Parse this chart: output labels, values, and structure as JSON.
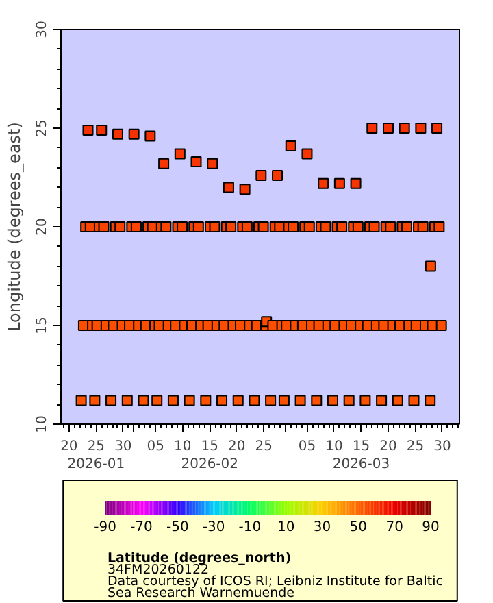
{
  "chart_data": {
    "type": "scatter",
    "ylabel": "Longitude (degrees_east)",
    "clabel": "Latitude (degrees_north)",
    "annotations": [
      "34FM20260122",
      "Data courtesy of ICOS RI; Leibniz Institute for Baltic Sea Research Warnemuende"
    ],
    "xlim": [
      "2026-01-18T12:00",
      "2026-04-02T04:00"
    ],
    "xticks": [
      {
        "value": "2026-01-20",
        "label": "20"
      },
      {
        "value": "2026-01-25",
        "label": "25\n2026-01"
      },
      {
        "value": "2026-01-30",
        "label": "30"
      },
      {
        "value": "2026-02-01",
        "label": null
      },
      {
        "value": "2026-02-05",
        "label": "05"
      },
      {
        "value": "2026-02-10",
        "label": "10"
      },
      {
        "value": "2026-02-15",
        "label": "15\n2026-02"
      },
      {
        "value": "2026-02-20",
        "label": "20"
      },
      {
        "value": "2026-02-25",
        "label": "25"
      },
      {
        "value": "2026-03-01",
        "label": null
      },
      {
        "value": "2026-03-05",
        "label": "05"
      },
      {
        "value": "2026-03-10",
        "label": "10"
      },
      {
        "value": "2026-03-15",
        "label": "15\n2026-03"
      },
      {
        "value": "2026-03-20",
        "label": "20"
      },
      {
        "value": "2026-03-25",
        "label": "25"
      },
      {
        "value": "2026-03-30",
        "label": "30"
      }
    ],
    "ylim": [
      10,
      30
    ],
    "yticks": [
      10,
      15,
      20,
      25,
      30
    ],
    "clim": [
      -90,
      90
    ],
    "cticks": [
      -90,
      -70,
      -50,
      -30,
      -10,
      10,
      30,
      50,
      70,
      90
    ],
    "marker": "square",
    "grid": false,
    "series": [
      {
        "x": [
          "2026-01-22T06:00",
          "2026-01-22T16:00",
          "2026-01-23T02:00",
          "2026-01-23T12:00",
          "2026-01-23T22:00",
          "2026-01-24T08:00",
          "2026-01-24T18:00",
          "2026-01-25T04:00",
          "2026-01-25T14:00",
          "2026-01-26T00:00",
          "2026-01-26T10:00",
          "2026-01-26T20:00",
          "2026-01-27T18:00",
          "2026-01-28T04:00",
          "2026-01-28T14:00",
          "2026-01-29T00:00",
          "2026-01-29T10:00",
          "2026-01-29T20:00",
          "2026-01-30T18:00",
          "2026-01-31T04:00",
          "2026-01-31T14:00",
          "2026-02-01T00:00",
          "2026-02-01T10:00",
          "2026-02-01T20:00",
          "2026-02-02T18:00",
          "2026-02-03T04:00",
          "2026-02-03T14:00",
          "2026-02-04T00:00",
          "2026-02-04T10:00",
          "2026-02-04T20:00",
          "2026-02-05T06:00",
          "2026-02-05T16:00",
          "2026-02-06T02:00",
          "2026-02-06T12:00",
          "2026-02-06T22:00",
          "2026-02-07T08:00",
          "2026-02-08T06:00",
          "2026-02-08T16:00",
          "2026-02-09T02:00",
          "2026-02-09T12:00",
          "2026-02-09T22:00",
          "2026-02-10T08:00",
          "2026-02-11T06:00",
          "2026-02-11T16:00",
          "2026-02-12T02:00",
          "2026-02-12T12:00",
          "2026-02-12T22:00",
          "2026-02-13T08:00",
          "2026-02-14T06:00",
          "2026-02-14T16:00",
          "2026-02-15T02:00",
          "2026-02-15T12:00",
          "2026-02-15T22:00",
          "2026-02-16T08:00",
          "2026-02-17T06:00",
          "2026-02-17T16:00",
          "2026-02-18T02:00",
          "2026-02-18T12:00",
          "2026-02-18T22:00",
          "2026-02-19T08:00",
          "2026-02-20T06:00",
          "2026-02-20T16:00",
          "2026-02-21T02:00",
          "2026-02-21T12:00",
          "2026-02-21T22:00",
          "2026-02-22T08:00",
          "2026-02-23T06:00",
          "2026-02-23T16:00",
          "2026-02-24T02:00",
          "2026-02-24T12:00",
          "2026-02-24T22:00",
          "2026-02-25T08:00",
          "2026-02-25T12:00",
          "2026-02-26T06:00",
          "2026-02-26T16:00",
          "2026-02-27T02:00",
          "2026-02-27T12:00",
          "2026-02-27T22:00",
          "2026-02-28T08:00",
          "2026-02-28T18:00",
          "2026-03-01T04:00",
          "2026-03-01T14:00",
          "2026-03-02T00:00",
          "2026-03-02T10:00",
          "2026-03-02T20:00",
          "2026-03-03T18:00",
          "2026-03-04T04:00",
          "2026-03-04T14:00",
          "2026-03-05T00:00",
          "2026-03-05T10:00",
          "2026-03-05T20:00",
          "2026-03-06T18:00",
          "2026-03-07T04:00",
          "2026-03-07T14:00",
          "2026-03-08T00:00",
          "2026-03-08T10:00",
          "2026-03-08T20:00",
          "2026-03-09T18:00",
          "2026-03-10T04:00",
          "2026-03-10T14:00",
          "2026-03-11T00:00",
          "2026-03-11T10:00",
          "2026-03-11T20:00",
          "2026-03-12T18:00",
          "2026-03-13T04:00",
          "2026-03-13T14:00",
          "2026-03-14T00:00",
          "2026-03-14T10:00",
          "2026-03-14T20:00",
          "2026-03-15T18:00",
          "2026-03-16T04:00",
          "2026-03-16T14:00",
          "2026-03-17T00:00",
          "2026-03-17T10:00",
          "2026-03-17T20:00",
          "2026-03-18T18:00",
          "2026-03-19T04:00",
          "2026-03-19T14:00",
          "2026-03-20T00:00",
          "2026-03-20T10:00",
          "2026-03-20T20:00",
          "2026-03-21T18:00",
          "2026-03-22T04:00",
          "2026-03-22T14:00",
          "2026-03-23T00:00",
          "2026-03-23T10:00",
          "2026-03-23T20:00",
          "2026-03-24T18:00",
          "2026-03-25T04:00",
          "2026-03-25T14:00",
          "2026-03-26T00:00",
          "2026-03-26T10:00",
          "2026-03-26T20:00",
          "2026-03-27T18:00",
          "2026-03-27T20:00",
          "2026-03-28T04:00",
          "2026-03-28T14:00",
          "2026-03-29T00:00",
          "2026-03-29T10:00",
          "2026-03-29T20:00"
        ],
        "values": [
          11.2,
          15,
          20,
          24.9,
          20,
          15,
          11.2,
          15,
          20,
          24.9,
          20,
          15,
          11.2,
          15,
          20,
          24.7,
          20,
          15,
          11.2,
          15,
          20,
          24.7,
          20,
          15,
          11.2,
          15,
          20,
          24.6,
          20,
          15,
          11.2,
          15,
          20,
          23.2,
          20,
          15,
          11.2,
          15,
          20,
          23.7,
          20,
          15,
          11.2,
          15,
          20,
          23.3,
          20,
          15,
          11.2,
          15,
          20,
          23.2,
          20,
          15,
          11.2,
          15,
          20,
          22.0,
          20,
          15,
          11.2,
          15,
          20,
          21.9,
          20,
          15,
          11.2,
          15,
          20,
          22.6,
          20,
          15,
          15.2,
          11.2,
          15,
          20,
          22.6,
          20,
          15,
          11.2,
          15,
          20,
          24.1,
          20,
          15,
          11.2,
          15,
          20,
          23.7,
          20,
          15,
          11.2,
          15,
          20,
          22.2,
          20,
          15,
          11.2,
          15,
          20,
          22.2,
          20,
          15,
          11.2,
          15,
          20,
          22.2,
          20,
          15,
          11.2,
          15,
          20,
          25.0,
          20,
          15,
          11.2,
          15,
          20,
          25.0,
          20,
          15,
          11.2,
          15,
          20,
          25.0,
          20,
          15,
          11.2,
          15,
          20,
          25.0,
          20,
          15,
          11.2,
          18.0,
          15,
          20,
          25.0,
          20,
          15
        ],
        "cvalues": [
          54.0,
          54.6,
          56.5,
          60.1,
          56.5,
          54.6,
          54.0,
          54.6,
          56.5,
          60.1,
          56.5,
          54.6,
          54.0,
          54.6,
          56.5,
          60.1,
          56.5,
          54.6,
          54.0,
          54.6,
          56.5,
          60.1,
          56.5,
          54.6,
          54.0,
          54.6,
          56.5,
          60.1,
          56.5,
          54.6,
          54.0,
          54.6,
          56.5,
          59.5,
          56.5,
          54.6,
          54.0,
          54.6,
          56.5,
          59.5,
          56.5,
          54.6,
          54.0,
          54.6,
          56.5,
          59.5,
          56.5,
          54.6,
          54.0,
          54.6,
          56.5,
          59.5,
          56.5,
          54.6,
          54.0,
          54.6,
          56.5,
          59.5,
          56.5,
          54.6,
          54.0,
          54.6,
          56.5,
          59.5,
          56.5,
          54.6,
          54.0,
          54.6,
          56.5,
          59.5,
          56.5,
          54.6,
          54.6,
          54.0,
          54.6,
          56.5,
          59.5,
          56.5,
          54.6,
          54.0,
          54.6,
          56.5,
          59.5,
          56.5,
          54.6,
          54.0,
          54.6,
          56.5,
          59.5,
          56.5,
          54.6,
          54.0,
          54.6,
          56.5,
          59.5,
          56.5,
          54.6,
          54.0,
          54.6,
          56.5,
          59.5,
          56.5,
          54.6,
          54.0,
          54.6,
          56.5,
          59.5,
          56.5,
          54.6,
          54.0,
          54.6,
          56.5,
          60.1,
          56.5,
          54.6,
          54.0,
          54.6,
          56.5,
          60.1,
          56.5,
          54.6,
          54.0,
          54.6,
          56.5,
          60.1,
          56.5,
          54.6,
          54.0,
          54.6,
          56.5,
          60.1,
          56.5,
          54.6,
          54.0,
          55.5,
          54.6,
          56.5,
          60.1,
          56.5,
          54.6
        ]
      }
    ]
  }
}
